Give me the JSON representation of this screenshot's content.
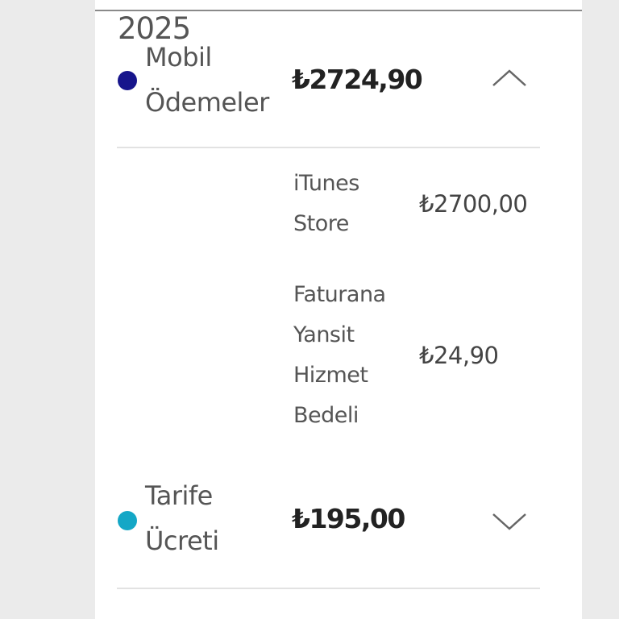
{
  "year": "2025",
  "categories": [
    {
      "label_line1": "Mobil",
      "label_line2": "Ödemeler",
      "amount": "₺2724,90",
      "dot_color": "#17158c",
      "expanded": true,
      "toggle_icon": "chevron-up-icon",
      "items": [
        {
          "label_lines": [
            "iTunes",
            "Store"
          ],
          "amount": "₺2700,00"
        },
        {
          "label_lines": [
            "Faturana",
            "Yansit",
            "Hizmet",
            "Bedeli"
          ],
          "amount": "₺24,90"
        }
      ]
    },
    {
      "label_line1": "Tarife",
      "label_line2": "Ücreti",
      "amount": "₺195,00",
      "dot_color": "#14a7c6",
      "expanded": false,
      "toggle_icon": "chevron-down-icon"
    }
  ]
}
